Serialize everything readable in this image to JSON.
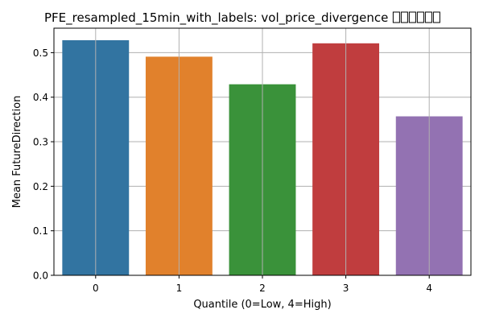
{
  "chart_data": {
    "type": "bar",
    "title": "PFE_resampled_15min_with_labels: vol_price_divergence",
    "title_missing_glyph_count": 6,
    "xlabel": "Quantile (0=Low, 4=High)",
    "ylabel": "Mean FutureDirection",
    "categories": [
      "0",
      "1",
      "2",
      "3",
      "4"
    ],
    "values": [
      0.528,
      0.491,
      0.429,
      0.521,
      0.357
    ],
    "ylim": [
      0,
      0.555
    ],
    "yticks": [
      0.0,
      0.1,
      0.2,
      0.3,
      0.4,
      0.5
    ],
    "ytick_labels": [
      "0.0",
      "0.1",
      "0.2",
      "0.3",
      "0.4",
      "0.5"
    ],
    "grid": true,
    "legend": "none",
    "colors": [
      "#3274a1",
      "#e1812c",
      "#3a923a",
      "#c03d3e",
      "#9372b2"
    ]
  }
}
